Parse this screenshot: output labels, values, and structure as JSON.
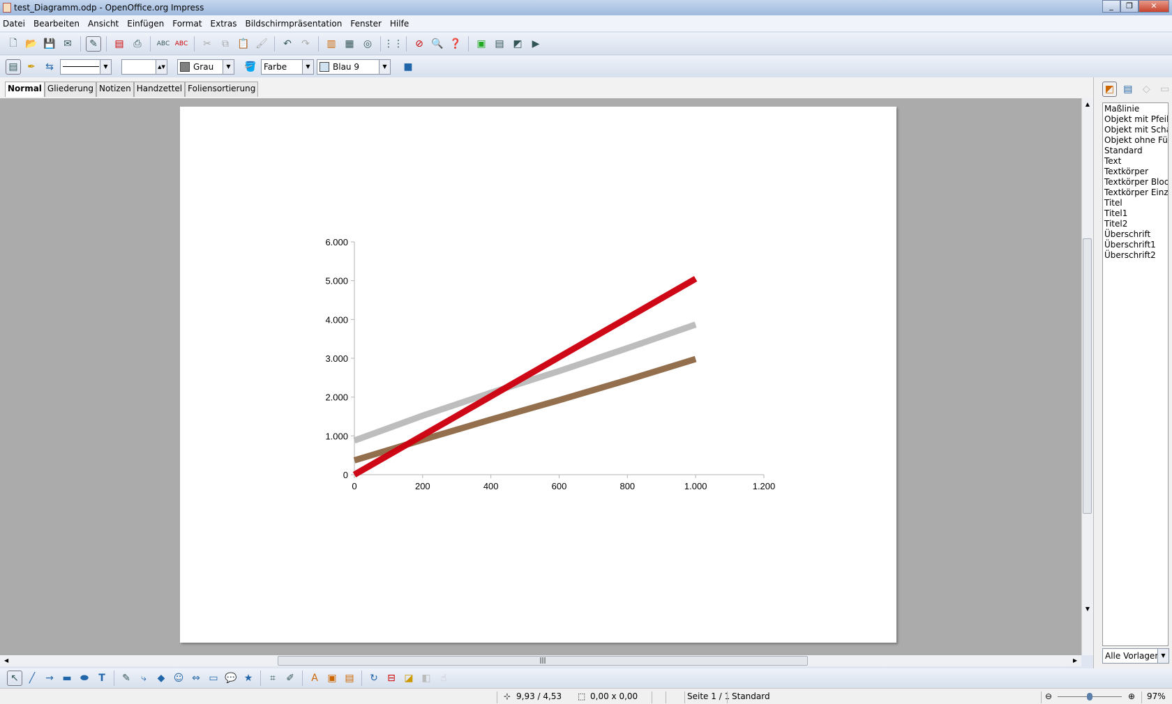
{
  "window": {
    "title": "test_Diagramm.odp - OpenOffice.org Impress",
    "controls": [
      "minimize",
      "maximize",
      "close"
    ]
  },
  "menu": [
    "Datei",
    "Bearbeiten",
    "Ansicht",
    "Einfügen",
    "Format",
    "Extras",
    "Bildschirmpräsentation",
    "Fenster",
    "Hilfe"
  ],
  "toolbar2": {
    "line_style": "",
    "line_width": "",
    "line_color": "Grau",
    "line_color_hex": "#808080",
    "area_style": "Farbe",
    "area_color": "Blau 9",
    "area_color_hex": "#cfe3f3"
  },
  "tabs": [
    "Normal",
    "Gliederung",
    "Notizen",
    "Handzettel",
    "Foliensortierung"
  ],
  "active_tab": "Normal",
  "styles": {
    "items": [
      "Maßlinie",
      "Objekt mit Pfeilspitze",
      "Objekt mit Schatten",
      "Objekt ohne Füllung",
      "Standard",
      "Text",
      "Textkörper",
      "Textkörper Blocksatz",
      "Textkörper Einzug",
      "Titel",
      "Titel1",
      "Titel2",
      "Überschrift",
      "Überschrift1",
      "Überschrift2"
    ],
    "filter": "Alle Vorlagen"
  },
  "status": {
    "position": "9,93 / 4,53",
    "size": "0,00 x 0,00",
    "page": "Seite 1 / 1",
    "layout": "Standard",
    "zoom": "97%",
    "zoom_level": 0.5
  },
  "chart_data": {
    "type": "line",
    "title": "",
    "xlabel": "",
    "ylabel": "",
    "xlim": [
      0,
      1200
    ],
    "ylim": [
      0,
      6000
    ],
    "xticks": [
      "0",
      "200",
      "400",
      "600",
      "800",
      "1.000",
      "1.200"
    ],
    "yticks": [
      "0",
      "1.000",
      "2.000",
      "3.000",
      "4.000",
      "5.000",
      "6.000"
    ],
    "grid": false,
    "x": [
      0,
      200,
      400,
      600,
      800,
      1000
    ],
    "series": [
      {
        "color": "#b9b9b9",
        "values": [
          880,
          1520,
          2110,
          2670,
          3260,
          3870
        ]
      },
      {
        "color": "#8f6a48",
        "values": [
          370,
          900,
          1420,
          1920,
          2440,
          2980
        ]
      },
      {
        "color": "#cc0010",
        "values": [
          0,
          1010,
          2020,
          3030,
          4040,
          5050
        ]
      }
    ]
  }
}
